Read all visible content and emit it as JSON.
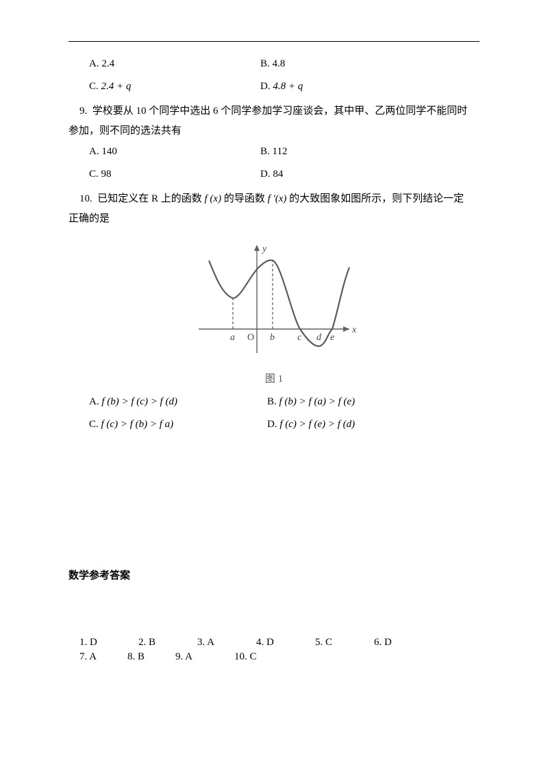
{
  "options_top": {
    "row1": {
      "a_label": "A. ",
      "a_val": "2.4",
      "b_label": "B. ",
      "b_val": "4.8"
    },
    "row2": {
      "c_label": "C. ",
      "c_val": "2.4 + q",
      "d_label": "D. ",
      "d_val": "4.8 + q"
    }
  },
  "q9": {
    "num": "9.",
    "text1": "学校要从 10 个同学中选出 6 个同学参加学习座谈会，其中甲、乙两位同学不能同时",
    "text2": "参加，则不同的选法共有",
    "opts": {
      "a": "A. 140",
      "b": "B. 112",
      "c": "C. 98",
      "d": "D. 84"
    }
  },
  "q10": {
    "num": "10.",
    "text1_a": "已知定义在 R 上的函数 ",
    "fx": "f (x)",
    "text1_b": " 的导函数 ",
    "fpx": "f '(x)",
    "text1_c": " 的大致图象如图所示，则下列结论一定",
    "text2": "正确的是",
    "caption": "图 1",
    "opts": {
      "a_pre": "A.  ",
      "a_math": "f (b) > f (c) > f (d)",
      "b_pre": "B.  ",
      "b_math": "f (b) > f (a) > f (e)",
      "c_pre": "C.  ",
      "c_math": "f (c) > f (b) > f a)",
      "d_pre": "D.  ",
      "d_math": "f (c) > f (e) > f (d)"
    }
  },
  "figure": {
    "stroke": "#5b5b5b",
    "axis_stroke": "#606060",
    "dash": "4 3",
    "labels": {
      "y": "y",
      "x": "x",
      "a": "a",
      "o": "O",
      "b": "b",
      "c": "c",
      "d": "d",
      "e": "e"
    },
    "label_font": "italic 14px 'Times New Roman'"
  },
  "answers": {
    "title": "数学参考答案",
    "items": [
      "1. D",
      "2. B",
      "3. A",
      "4. D",
      "5. C",
      "6. D",
      "7. A",
      "8. B",
      "9. A",
      "10. C"
    ]
  }
}
